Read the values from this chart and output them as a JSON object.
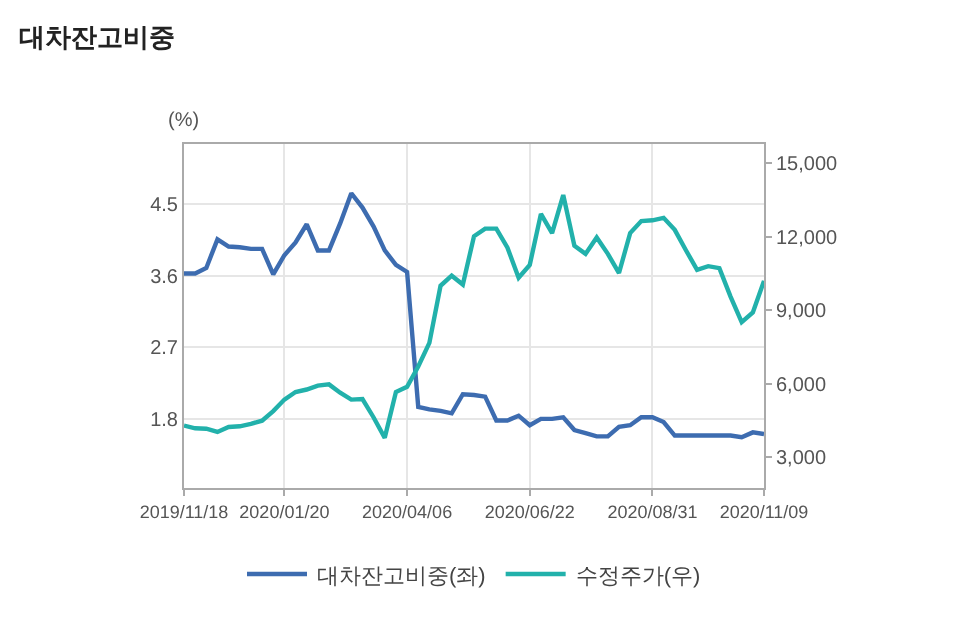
{
  "chart_data": {
    "type": "line",
    "title": "대차잔고비중",
    "ylabel": "(%)",
    "categories": [
      "2019/11/18",
      null,
      null,
      null,
      null,
      null,
      null,
      null,
      null,
      "2020/01/20",
      null,
      null,
      null,
      null,
      null,
      null,
      null,
      null,
      null,
      null,
      "2020/04/06",
      null,
      null,
      null,
      null,
      null,
      null,
      null,
      null,
      null,
      null,
      "2020/06/22",
      null,
      null,
      null,
      null,
      null,
      null,
      null,
      null,
      null,
      null,
      "2020/08/31",
      null,
      null,
      null,
      null,
      null,
      null,
      null,
      null,
      null,
      "2020/11/09"
    ],
    "series": [
      {
        "name": "대차잔고비중(좌)",
        "color": "#3d6cb0",
        "values": [
          3.63,
          3.63,
          3.7,
          4.06,
          3.97,
          3.96,
          3.94,
          3.94,
          3.62,
          3.86,
          4.02,
          4.25,
          3.92,
          3.92,
          4.26,
          4.64,
          4.46,
          4.22,
          3.92,
          3.74,
          3.65,
          1.95,
          1.92,
          1.9,
          1.87,
          2.11,
          2.1,
          2.08,
          1.78,
          1.78,
          1.84,
          1.72,
          1.8,
          1.8,
          1.82,
          1.66,
          1.62,
          1.58,
          1.58,
          1.7,
          1.72,
          1.82,
          1.82,
          1.76,
          1.59,
          1.59,
          1.59,
          1.59,
          1.59,
          1.59,
          1.57,
          1.63,
          1.61
        ]
      },
      {
        "name": "수정주가(우)",
        "color": "#22b1ab",
        "axis": "y2",
        "values": [
          4300,
          4190,
          4170,
          4040,
          4240,
          4270,
          4370,
          4500,
          4890,
          5360,
          5670,
          5770,
          5930,
          5980,
          5640,
          5360,
          5380,
          4630,
          3800,
          5670,
          5880,
          6710,
          7670,
          10000,
          10410,
          10050,
          12020,
          12330,
          12330,
          11550,
          10330,
          10850,
          12930,
          12150,
          13700,
          11630,
          11300,
          11970,
          11300,
          10520,
          12150,
          12640,
          12670,
          12770,
          12280,
          11450,
          10650,
          10800,
          10720,
          9560,
          8520,
          8910,
          10200
        ]
      }
    ],
    "ylim": [
      0.93,
      5.26
    ],
    "yticks": [
      1.8,
      2.7,
      3.6,
      4.5
    ],
    "y2lim": [
      1755,
      15780
    ],
    "y2ticks": [
      {
        "value": 3000,
        "label": "3,000"
      },
      {
        "value": 6000,
        "label": "6,000"
      },
      {
        "value": 9000,
        "label": "9,000"
      },
      {
        "value": 12000,
        "label": "12,000"
      },
      {
        "value": 15000,
        "label": "15,000"
      }
    ],
    "grid": true,
    "legend": "bottom",
    "marker": "none",
    "line_style": "solid"
  }
}
